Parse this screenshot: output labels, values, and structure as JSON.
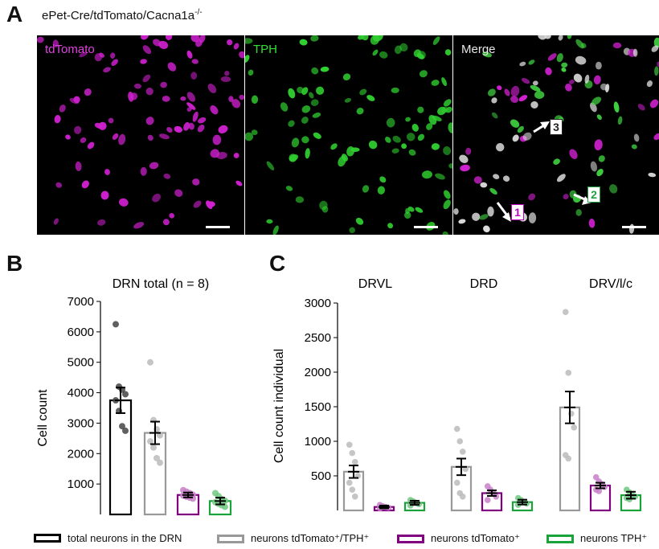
{
  "panel_a": {
    "letter": "A",
    "subtitle_base": "ePet-Cre/tdTomato/Cacna1a",
    "subtitle_sup": "-/-",
    "images": [
      {
        "label": "tdTomato",
        "label_color": "#e040e0"
      },
      {
        "label": "TPH",
        "label_color": "#30e030"
      },
      {
        "label": "Merge",
        "label_color": "#e8e8e8"
      }
    ],
    "arrows": [
      {
        "label": "1",
        "box_color": "#c000c0"
      },
      {
        "label": "2",
        "box_color": "#20a040"
      },
      {
        "label": "3",
        "box_color": "#222222"
      }
    ]
  },
  "panel_b": {
    "letter": "B"
  },
  "panel_c": {
    "letter": "C"
  },
  "colors": {
    "total": "#000000",
    "both": "#999999",
    "tdtomato": "#800080",
    "tph": "#1aa33a"
  },
  "legend": [
    {
      "key": "total",
      "label": "total neurons in the DRN"
    },
    {
      "key": "both",
      "label": "neurons tdTomato⁺/TPH⁺"
    },
    {
      "key": "tdtomato",
      "label": "neurons tdTomato⁺"
    },
    {
      "key": "tph",
      "label": "neurons TPH⁺"
    }
  ],
  "chart_data": [
    {
      "type": "bar",
      "title": "DRN total (n = 8)",
      "ylabel": "Cell count",
      "ylim": [
        0,
        7000
      ],
      "yticks": [
        1000,
        2000,
        3000,
        4000,
        5000,
        6000,
        7000
      ],
      "categories": [
        "total neurons in the DRN",
        "neurons tdTomato⁺/TPH⁺",
        "neurons tdTomato⁺",
        "neurons TPH⁺"
      ],
      "series_keys": [
        "total",
        "both",
        "tdtomato",
        "tph"
      ],
      "values": [
        3750,
        2680,
        640,
        440
      ],
      "sem": [
        420,
        370,
        80,
        110
      ],
      "points": [
        [
          6250,
          4200,
          4100,
          3950,
          3750,
          3400,
          2900,
          2750
        ],
        [
          5000,
          3100,
          2800,
          2600,
          2400,
          2200,
          1850,
          1700
        ],
        [
          800,
          750,
          700,
          650,
          620,
          580,
          550,
          520
        ],
        [
          700,
          600,
          500,
          450,
          400,
          350,
          300,
          250
        ]
      ]
    },
    {
      "type": "bar",
      "title": "",
      "ylabel": "Cell count individual",
      "ylim": [
        0,
        3000
      ],
      "yticks": [
        500,
        1000,
        1500,
        2000,
        2500,
        3000
      ],
      "groups": [
        "DRVL",
        "DRD",
        "DRV/l/c"
      ],
      "series_keys": [
        "both",
        "tdtomato",
        "tph"
      ],
      "values": [
        [
          560,
          50,
          110
        ],
        [
          630,
          250,
          120
        ],
        [
          1490,
          360,
          220
        ]
      ],
      "sem": [
        [
          90,
          20,
          30
        ],
        [
          120,
          40,
          35
        ],
        [
          230,
          40,
          50
        ]
      ],
      "points": [
        [
          [
            950,
            830,
            700,
            500,
            400,
            300,
            200
          ],
          [
            80,
            60,
            50,
            40,
            30
          ],
          [
            150,
            130,
            110,
            90,
            70
          ]
        ],
        [
          [
            1180,
            1000,
            850,
            600,
            400,
            250,
            200
          ],
          [
            350,
            300,
            250,
            200,
            150
          ],
          [
            180,
            150,
            120,
            100,
            80
          ]
        ],
        [
          [
            2870,
            1990,
            1400,
            1200,
            800,
            750
          ],
          [
            480,
            420,
            380,
            340,
            300,
            280
          ],
          [
            300,
            260,
            220,
            200,
            180,
            160
          ]
        ]
      ]
    }
  ]
}
